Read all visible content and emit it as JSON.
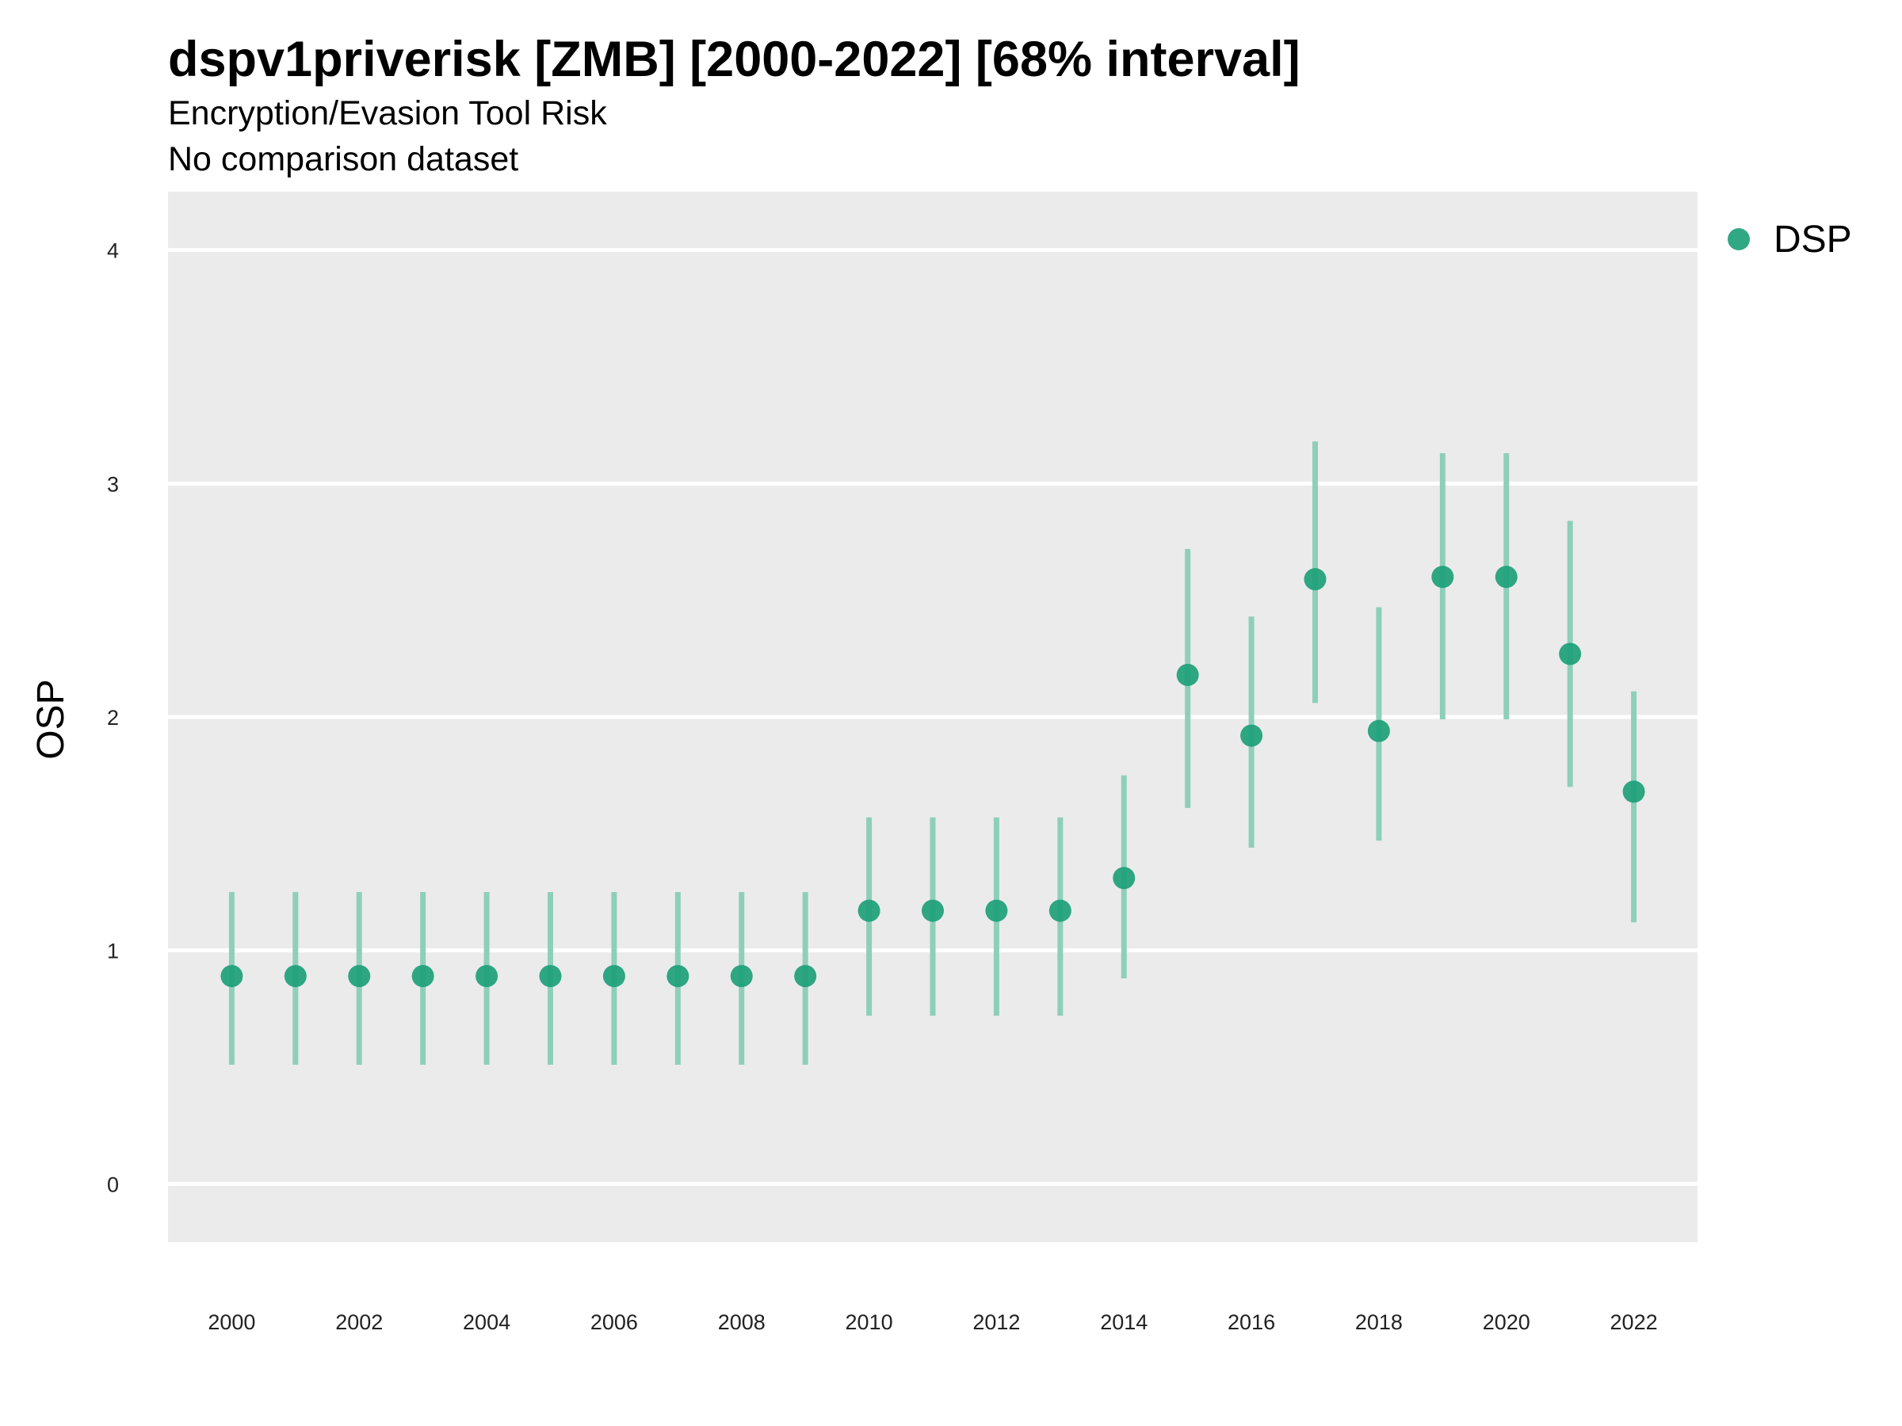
{
  "chart_data": {
    "type": "scatter",
    "title": "dspv1priverisk [ZMB] [2000-2022] [68% interval]",
    "subtitle": "Encryption/Evasion Tool Risk",
    "subtitle2": "No comparison dataset",
    "ylabel": "OSP",
    "xlabel": "",
    "ylim": [
      -0.25,
      4.25
    ],
    "yticks": [
      0,
      1,
      2,
      3,
      4
    ],
    "xlim": [
      1999,
      2023
    ],
    "xticks": [
      2000,
      2002,
      2004,
      2006,
      2008,
      2010,
      2012,
      2014,
      2016,
      2018,
      2020,
      2022
    ],
    "grid": true,
    "legend": {
      "position": "top-right",
      "entries": [
        "DSP"
      ]
    },
    "colors": {
      "point": "#1a9e77",
      "interval": "#8ecfb9",
      "panel": "#ebebeb",
      "grid": "#ffffff"
    },
    "series": [
      {
        "name": "DSP",
        "x": [
          2000,
          2001,
          2002,
          2003,
          2004,
          2005,
          2006,
          2007,
          2008,
          2009,
          2010,
          2011,
          2012,
          2013,
          2014,
          2015,
          2016,
          2017,
          2018,
          2019,
          2020,
          2021,
          2022
        ],
        "y": [
          0.89,
          0.89,
          0.89,
          0.89,
          0.89,
          0.89,
          0.89,
          0.89,
          0.89,
          0.89,
          1.17,
          1.17,
          1.17,
          1.17,
          1.31,
          2.18,
          1.92,
          2.59,
          1.94,
          2.6,
          2.6,
          2.27,
          1.68
        ],
        "lower": [
          0.51,
          0.51,
          0.51,
          0.51,
          0.51,
          0.51,
          0.51,
          0.51,
          0.51,
          0.51,
          0.72,
          0.72,
          0.72,
          0.72,
          0.88,
          1.61,
          1.44,
          2.06,
          1.47,
          1.99,
          1.99,
          1.7,
          1.12
        ],
        "upper": [
          1.25,
          1.25,
          1.25,
          1.25,
          1.25,
          1.25,
          1.25,
          1.25,
          1.25,
          1.25,
          1.57,
          1.57,
          1.57,
          1.57,
          1.75,
          2.72,
          2.43,
          3.18,
          2.47,
          3.13,
          3.13,
          2.84,
          2.11
        ]
      }
    ]
  }
}
